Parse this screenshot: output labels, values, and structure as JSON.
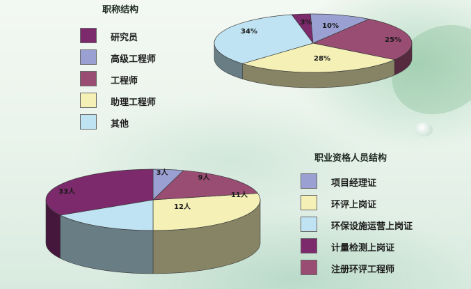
{
  "chart_data": [
    {
      "type": "pie",
      "title": "职称结构",
      "categories": [
        "研究员",
        "高级工程师",
        "工程师",
        "助理工程师",
        "其他"
      ],
      "values": [
        3,
        10,
        25,
        28,
        34
      ],
      "value_labels": [
        "3%",
        "10%",
        "25%",
        "28%",
        "34%"
      ],
      "colors": [
        "#7d2a6d",
        "#9aa0d2",
        "#9a4d73",
        "#f4f0b6",
        "#bfe3f2"
      ],
      "legend_position": "left",
      "style": "3d"
    },
    {
      "type": "pie",
      "title": "职业资格人员结构",
      "categories": [
        "项目经理证",
        "环评上岗证",
        "环保设施运营上岗证",
        "计量检测上岗证",
        "注册环评工程师"
      ],
      "values": [
        3,
        11,
        12,
        33,
        9
      ],
      "value_labels": [
        "3人",
        "11人",
        "12人",
        "33人",
        "9人"
      ],
      "colors": [
        "#9aa0d2",
        "#f4f0b6",
        "#bfe3f2",
        "#7d2a6d",
        "#9a4d73"
      ],
      "legend_position": "right",
      "style": "3d"
    }
  ]
}
